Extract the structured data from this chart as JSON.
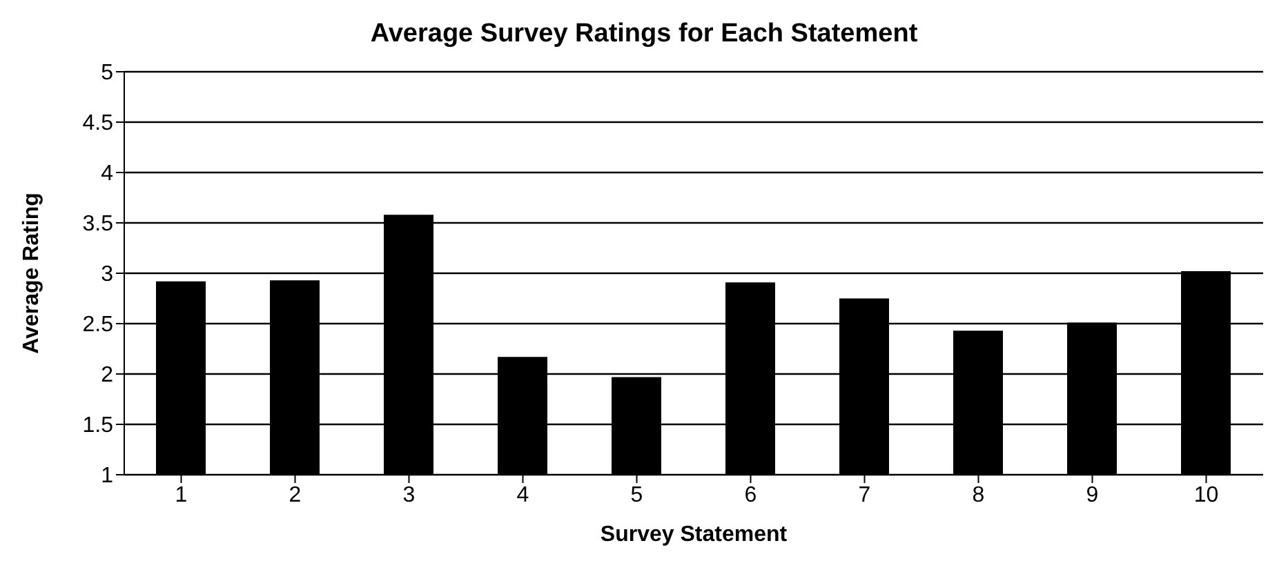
{
  "chart_data": {
    "type": "bar",
    "title": "Average Survey Ratings for Each Statement",
    "xlabel": "Survey Statement",
    "ylabel": "Average Rating",
    "categories": [
      "1",
      "2",
      "3",
      "4",
      "5",
      "6",
      "7",
      "8",
      "9",
      "10"
    ],
    "values": [
      2.92,
      2.93,
      3.58,
      2.17,
      1.97,
      2.91,
      2.75,
      2.43,
      2.51,
      3.02
    ],
    "color": "#000000",
    "ylim": [
      1,
      5
    ],
    "yticks": [
      1,
      1.5,
      2,
      2.5,
      3,
      3.5,
      4,
      4.5,
      5
    ],
    "grid": "y"
  }
}
